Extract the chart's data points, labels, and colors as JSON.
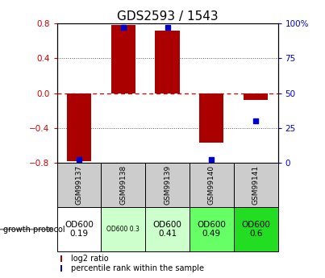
{
  "title": "GDS2593 / 1543",
  "samples": [
    "GSM99137",
    "GSM99138",
    "GSM99139",
    "GSM99140",
    "GSM99141"
  ],
  "log2_ratios": [
    -0.78,
    0.78,
    0.72,
    -0.57,
    -0.08
  ],
  "percentile_ranks": [
    2,
    97,
    97,
    2,
    30
  ],
  "bar_color": "#aa0000",
  "dot_color": "#0000cc",
  "ylim": [
    -0.8,
    0.8
  ],
  "y2lim": [
    0,
    100
  ],
  "yticks_left": [
    -0.8,
    -0.4,
    0.0,
    0.4,
    0.8
  ],
  "yticks_right": [
    0,
    25,
    50,
    75,
    100
  ],
  "grid_ticks_dotted": [
    -0.4,
    0.4
  ],
  "zero_line_color": "#cc0000",
  "grid_color": "#555555",
  "protocol_labels": [
    "OD600\n0.19",
    "OD600 0.3",
    "OD600\n0.41",
    "OD600\n0.49",
    "OD600\n0.6"
  ],
  "protocol_colors": [
    "#ffffff",
    "#ccffcc",
    "#ccffcc",
    "#66ff66",
    "#22dd22"
  ],
  "protocol_small_text": [
    false,
    true,
    false,
    false,
    false
  ],
  "left_label": "growth protocol",
  "legend_red_label": "log2 ratio",
  "legend_blue_label": "percentile rank within the sample",
  "title_fontsize": 11,
  "tick_fontsize": 7.5,
  "sample_fontsize": 6.5,
  "proto_fontsize": 7.5,
  "proto_small_fontsize": 5.5,
  "axis_left_color": "#cc0000",
  "axis_right_color": "#0000cc",
  "bar_width": 0.55,
  "dot_size": 4.5
}
